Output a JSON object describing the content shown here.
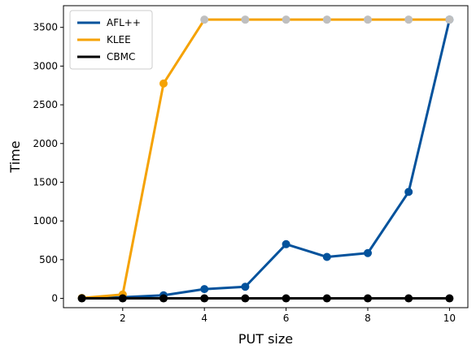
{
  "chart_data": {
    "type": "line",
    "title": "",
    "xlabel": "PUT size",
    "ylabel": "Time",
    "xlim": [
      0.55,
      10.45
    ],
    "ylim": [
      -120,
      3780
    ],
    "x_ticks": [
      2,
      4,
      6,
      8,
      10
    ],
    "y_ticks": [
      0,
      500,
      1000,
      1500,
      2000,
      2500,
      3000,
      3500
    ],
    "grid": false,
    "legend_position": "top-left",
    "timeout_marker_color": "#bfbfbf",
    "series": [
      {
        "name": "AFL++",
        "color": "#02529c",
        "x": [
          1,
          2,
          3,
          4,
          5,
          6,
          7,
          8,
          9,
          10
        ],
        "values": [
          5,
          15,
          40,
          120,
          150,
          700,
          535,
          585,
          1375,
          3600
        ],
        "timeout_points": []
      },
      {
        "name": "KLEE",
        "color": "#f5a202",
        "x": [
          1,
          2,
          3,
          4,
          5,
          6,
          7,
          8,
          9,
          10
        ],
        "values": [
          5,
          50,
          2775,
          3600,
          3600,
          3600,
          3600,
          3600,
          3600,
          3600
        ],
        "timeout_points": [
          4,
          5,
          6,
          7,
          8,
          9,
          10
        ]
      },
      {
        "name": "CBMC",
        "color": "#000000",
        "x": [
          1,
          2,
          3,
          4,
          5,
          6,
          7,
          8,
          9,
          10
        ],
        "values": [
          0,
          0,
          0,
          0,
          0,
          0,
          0,
          0,
          0,
          0
        ],
        "timeout_points": []
      }
    ]
  }
}
